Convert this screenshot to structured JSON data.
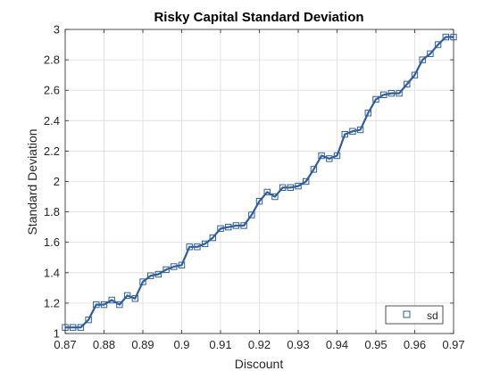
{
  "chart_data": {
    "type": "line",
    "title": "Risky Capital Standard Deviation",
    "xlabel": "Discount",
    "ylabel": "Standard Deviation",
    "xlim": [
      0.87,
      0.97
    ],
    "ylim": [
      1,
      3
    ],
    "xticks": [
      "0.87",
      "0.88",
      "0.89",
      "0.9",
      "0.91",
      "0.92",
      "0.93",
      "0.94",
      "0.95",
      "0.96",
      "0.97"
    ],
    "yticks": [
      "1",
      "1.2",
      "1.4",
      "1.6",
      "1.8",
      "2",
      "2.2",
      "2.4",
      "2.6",
      "2.8",
      "3"
    ],
    "grid": true,
    "legend_position": "bottom-right",
    "colors": {
      "line": "#2e5e9e",
      "axis": "#262626",
      "grid": "#dcdcdc"
    },
    "series": [
      {
        "name": "sd",
        "marker": "square",
        "x": [
          0.87,
          0.872,
          0.874,
          0.876,
          0.878,
          0.88,
          0.882,
          0.884,
          0.886,
          0.888,
          0.89,
          0.892,
          0.894,
          0.896,
          0.898,
          0.9,
          0.902,
          0.904,
          0.906,
          0.908,
          0.91,
          0.912,
          0.914,
          0.916,
          0.918,
          0.92,
          0.922,
          0.924,
          0.926,
          0.928,
          0.93,
          0.932,
          0.934,
          0.936,
          0.938,
          0.94,
          0.942,
          0.944,
          0.946,
          0.948,
          0.95,
          0.952,
          0.954,
          0.956,
          0.958,
          0.96,
          0.962,
          0.964,
          0.966,
          0.968,
          0.97
        ],
        "y": [
          1.04,
          1.04,
          1.04,
          1.09,
          1.19,
          1.19,
          1.22,
          1.19,
          1.25,
          1.23,
          1.34,
          1.38,
          1.39,
          1.42,
          1.44,
          1.45,
          1.57,
          1.57,
          1.59,
          1.63,
          1.69,
          1.7,
          1.71,
          1.71,
          1.78,
          1.87,
          1.93,
          1.9,
          1.96,
          1.96,
          1.97,
          2.0,
          2.08,
          2.17,
          2.15,
          2.17,
          2.31,
          2.33,
          2.34,
          2.45,
          2.54,
          2.57,
          2.58,
          2.58,
          2.64,
          2.7,
          2.8,
          2.84,
          2.9,
          2.95,
          2.95
        ]
      }
    ]
  }
}
